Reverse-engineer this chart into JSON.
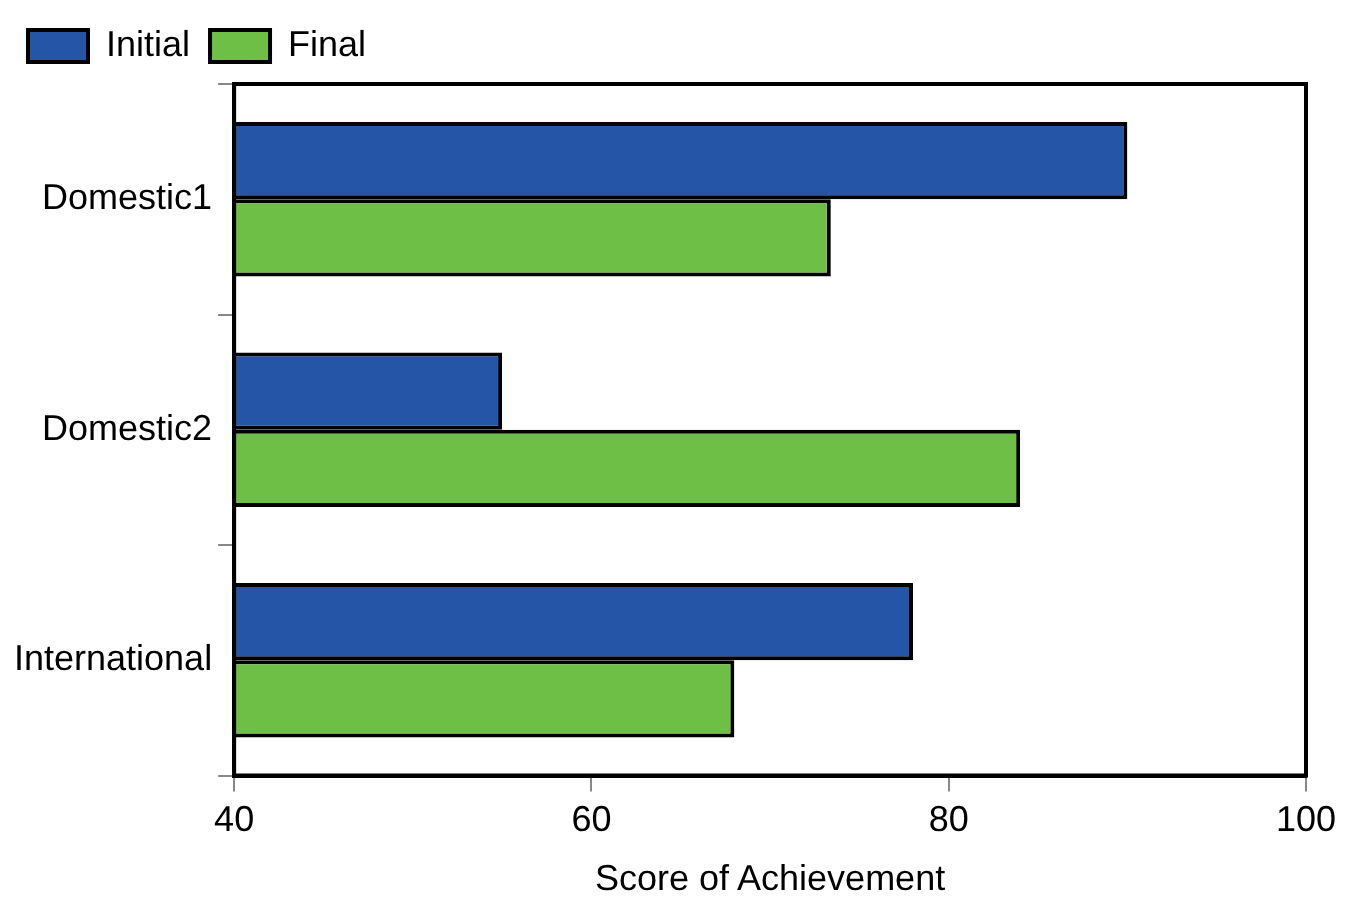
{
  "chart_data": {
    "type": "bar",
    "orientation": "horizontal",
    "xlabel": "Score of Achievement",
    "categories": [
      "Domestic1",
      "Domestic2",
      "International"
    ],
    "series": [
      {
        "name": "Initial",
        "color": "#2455a6",
        "values": [
          90,
          55,
          78
        ]
      },
      {
        "name": "Final",
        "color": "#6dbf45",
        "values": [
          73.4,
          84,
          68
        ]
      }
    ],
    "xlim": [
      40,
      100
    ],
    "xticks": [
      40,
      60,
      80,
      100
    ],
    "grid": false,
    "legend": "top left"
  }
}
